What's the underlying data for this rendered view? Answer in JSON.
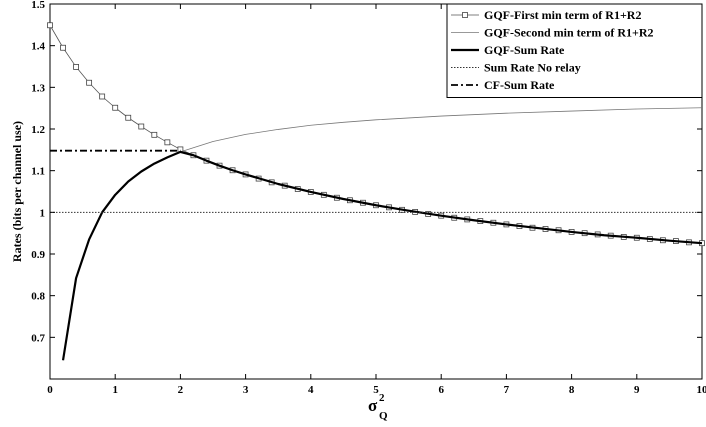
{
  "chart_data": {
    "type": "line",
    "xlabel": "σ",
    "xlabel_superscript": "2",
    "xlabel_subscript": "Q",
    "ylabel": "Rates (bits per channel use)",
    "xlim": [
      0,
      10
    ],
    "ylim": [
      0.6,
      1.5
    ],
    "xticks": [
      0,
      1,
      2,
      3,
      4,
      5,
      6,
      7,
      8,
      9,
      10
    ],
    "yticks": [
      0.7,
      0.8,
      0.9,
      1,
      1.1,
      1.2,
      1.3,
      1.4,
      1.5
    ],
    "grid": false,
    "legend_position": "top-right",
    "series": [
      {
        "name": "GQF-First min term of R1+R2",
        "style": "thin-line-square-markers",
        "color": "#555555",
        "x": [
          0,
          0.2,
          0.4,
          0.6,
          0.8,
          1.0,
          1.2,
          1.4,
          1.6,
          1.8,
          2.0,
          2.2,
          2.4,
          2.6,
          2.8,
          3.0,
          3.2,
          3.4,
          3.6,
          3.8,
          4.0,
          4.2,
          4.4,
          4.6,
          4.8,
          5.0,
          5.2,
          5.4,
          5.6,
          5.8,
          6.0,
          6.2,
          6.4,
          6.6,
          6.8,
          7.0,
          7.2,
          7.4,
          7.6,
          7.8,
          8.0,
          8.2,
          8.4,
          8.6,
          8.8,
          9.0,
          9.2,
          9.4,
          9.6,
          9.8,
          10.0
        ],
        "y": [
          1.449,
          1.395,
          1.349,
          1.311,
          1.278,
          1.251,
          1.227,
          1.206,
          1.186,
          1.168,
          1.151,
          1.137,
          1.124,
          1.112,
          1.101,
          1.091,
          1.081,
          1.072,
          1.064,
          1.056,
          1.049,
          1.042,
          1.035,
          1.029,
          1.023,
          1.017,
          1.012,
          1.006,
          1.001,
          0.996,
          0.992,
          0.987,
          0.983,
          0.979,
          0.975,
          0.971,
          0.967,
          0.963,
          0.96,
          0.957,
          0.953,
          0.95,
          0.947,
          0.944,
          0.941,
          0.939,
          0.936,
          0.933,
          0.931,
          0.928,
          0.926
        ]
      },
      {
        "name": "GQF-Second min term of R1+R2",
        "style": "thin-line",
        "color": "#777777",
        "x": [
          0.2,
          0.4,
          0.6,
          0.8,
          1.0,
          1.2,
          1.4,
          1.6,
          1.8,
          2.0,
          2.5,
          3.0,
          3.5,
          4.0,
          4.5,
          5.0,
          6.0,
          7.0,
          8.0,
          9.0,
          10.0
        ],
        "y": [
          0.645,
          0.842,
          0.935,
          1.0,
          1.042,
          1.074,
          1.098,
          1.117,
          1.132,
          1.145,
          1.17,
          1.187,
          1.199,
          1.209,
          1.216,
          1.222,
          1.231,
          1.238,
          1.243,
          1.248,
          1.251
        ]
      },
      {
        "name": "GQF-Sum Rate",
        "style": "thick-line",
        "color": "#000000",
        "x": [
          0.2,
          0.4,
          0.6,
          0.8,
          1.0,
          1.2,
          1.4,
          1.6,
          1.8,
          2.0,
          2.2,
          2.4,
          2.6,
          2.8,
          3.0,
          3.5,
          4.0,
          4.5,
          5.0,
          5.5,
          6.0,
          6.5,
          7.0,
          7.5,
          8.0,
          8.5,
          9.0,
          9.5,
          10.0
        ],
        "y": [
          0.645,
          0.842,
          0.935,
          1.0,
          1.042,
          1.074,
          1.098,
          1.117,
          1.132,
          1.145,
          1.137,
          1.124,
          1.112,
          1.101,
          1.091,
          1.068,
          1.049,
          1.032,
          1.017,
          1.004,
          0.992,
          0.981,
          0.971,
          0.962,
          0.953,
          0.945,
          0.939,
          0.932,
          0.926
        ]
      },
      {
        "name": "Sum Rate No relay",
        "style": "dotted-line",
        "color": "#333333",
        "x": [
          0,
          10
        ],
        "y": [
          1.0,
          1.0
        ]
      },
      {
        "name": "CF-Sum Rate",
        "style": "dash-dot-line",
        "color": "#000000",
        "x": [
          0,
          2.0
        ],
        "y": [
          1.148,
          1.148
        ]
      }
    ]
  }
}
